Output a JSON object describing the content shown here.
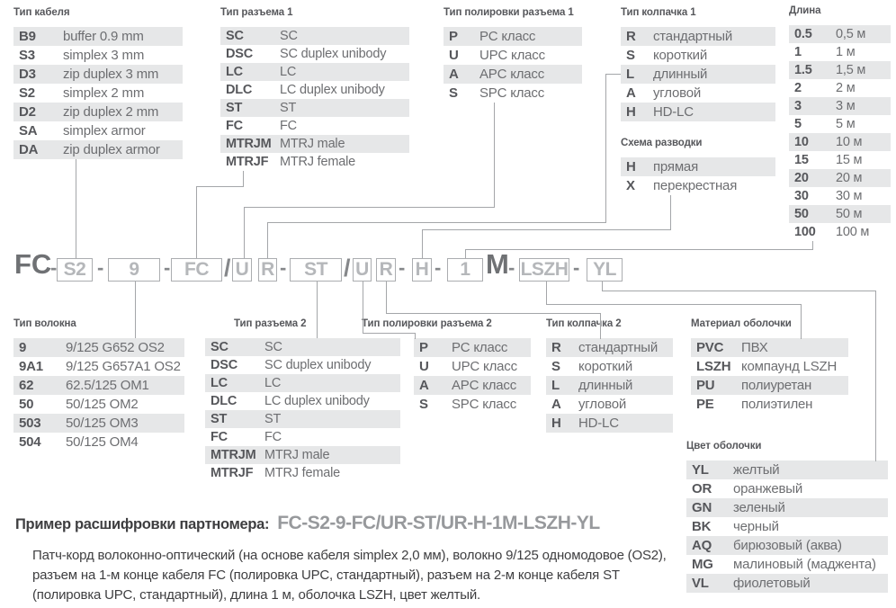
{
  "part_number": {
    "prefix": "FC",
    "meters_suffix": "M",
    "separator_dash": "-",
    "separator_slash": "/",
    "segments": {
      "cable_type": "S2",
      "fiber_type": "9",
      "connector1": "FC",
      "polish1": "U",
      "cap1": "R",
      "connector2": "ST",
      "polish2": "U",
      "cap2": "R",
      "wiring_scheme": "H",
      "length": "1",
      "jacket_material": "LSZH",
      "jacket_color": "YL"
    }
  },
  "tables": {
    "cable_type": {
      "label": "Тип кабеля",
      "rows": [
        [
          "B9",
          "buffer 0.9 mm"
        ],
        [
          "S3",
          "simplex 3 mm"
        ],
        [
          "D3",
          "zip duplex 3 mm"
        ],
        [
          "S2",
          "simplex 2 mm"
        ],
        [
          "D2",
          "zip duplex 2 mm"
        ],
        [
          "SA",
          "simplex armor"
        ],
        [
          "DA",
          "zip duplex armor"
        ]
      ]
    },
    "connector1": {
      "label": "Тип разъема 1",
      "rows": [
        [
          "SC",
          "SC"
        ],
        [
          "DSC",
          "SC duplex unibody"
        ],
        [
          "LC",
          "LC"
        ],
        [
          "DLC",
          "LC duplex unibody"
        ],
        [
          "ST",
          "ST"
        ],
        [
          "FC",
          "FC"
        ],
        [
          "MTRJM",
          "MTRJ male"
        ],
        [
          "MTRJF",
          "MTRJ female"
        ]
      ]
    },
    "polish1": {
      "label": "Тип полировки разъема 1",
      "rows": [
        [
          "P",
          "PC класс"
        ],
        [
          "U",
          "UPC класс"
        ],
        [
          "A",
          "APC класс"
        ],
        [
          "S",
          "SPC класс"
        ]
      ]
    },
    "cap1": {
      "label": "Тип колпачка 1",
      "rows": [
        [
          "R",
          "стандартный"
        ],
        [
          "S",
          "короткий"
        ],
        [
          "L",
          "длинный"
        ],
        [
          "A",
          "угловой"
        ],
        [
          "H",
          "HD-LC"
        ]
      ]
    },
    "wiring_scheme": {
      "label": "Схема разводки",
      "rows": [
        [
          "H",
          "прямая"
        ],
        [
          "X",
          "перекрестная"
        ]
      ]
    },
    "length": {
      "label": "Длина",
      "rows": [
        [
          "0.5",
          "0,5 м"
        ],
        [
          "1",
          "1 м"
        ],
        [
          "1.5",
          "1,5 м"
        ],
        [
          "2",
          "2 м"
        ],
        [
          "3",
          "3 м"
        ],
        [
          "5",
          "5 м"
        ],
        [
          "10",
          "10 м"
        ],
        [
          "15",
          "15 м"
        ],
        [
          "20",
          "20 м"
        ],
        [
          "30",
          "30 м"
        ],
        [
          "50",
          "50 м"
        ],
        [
          "100",
          "100 м"
        ]
      ]
    },
    "fiber_type": {
      "label": "Тип волокна",
      "rows": [
        [
          "9",
          "9/125 G652 OS2"
        ],
        [
          "9A1",
          "9/125 G657A1 OS2"
        ],
        [
          "62",
          "62.5/125 OM1"
        ],
        [
          "50",
          "50/125 OM2"
        ],
        [
          "503",
          "50/125 OM3"
        ],
        [
          "504",
          "50/125 OM4"
        ]
      ]
    },
    "connector2": {
      "label": "Тип разъема 2",
      "rows": [
        [
          "SC",
          "SC"
        ],
        [
          "DSC",
          "SC duplex unibody"
        ],
        [
          "LC",
          "LC"
        ],
        [
          "DLC",
          "LC duplex unibody"
        ],
        [
          "ST",
          "ST"
        ],
        [
          "FC",
          "FC"
        ],
        [
          "MTRJM",
          "MTRJ male"
        ],
        [
          "MTRJF",
          "MTRJ female"
        ]
      ]
    },
    "polish2": {
      "label": "Тип полировки разъема 2",
      "rows": [
        [
          "P",
          "PC класс"
        ],
        [
          "U",
          "UPC класс"
        ],
        [
          "A",
          "APC класс"
        ],
        [
          "S",
          "SPC класс"
        ]
      ]
    },
    "cap2": {
      "label": "Тип колпачка 2",
      "rows": [
        [
          "R",
          "стандартный"
        ],
        [
          "S",
          "короткий"
        ],
        [
          "L",
          "длинный"
        ],
        [
          "A",
          "угловой"
        ],
        [
          "H",
          "HD-LC"
        ]
      ]
    },
    "jacket_material": {
      "label": "Материал оболочки",
      "rows": [
        [
          "PVC",
          "ПВХ"
        ],
        [
          "LSZH",
          "компаунд LSZH"
        ],
        [
          "PU",
          "полиуретан"
        ],
        [
          "PE",
          "полиэтилен"
        ]
      ]
    },
    "jacket_color": {
      "label": "Цвет оболочки",
      "rows": [
        [
          "YL",
          "желтый"
        ],
        [
          "OR",
          "оранжевый"
        ],
        [
          "GN",
          "зеленый"
        ],
        [
          "BK",
          "черный"
        ],
        [
          "AQ",
          "бирюзовый (аква)"
        ],
        [
          "MG",
          "малиновый (маджента)"
        ],
        [
          "VL",
          "фиолетовый"
        ]
      ]
    }
  },
  "example": {
    "label": "Пример расшифровки партномера:",
    "value": "FC-S2-9-FC/UR-ST/UR-H-1M-LSZH-YL",
    "description": "Патч-корд волоконно-оптический (на основе кабеля simplex 2,0 мм), волокно 9/125 одномодовое (OS2), разъем на 1-м конце кабеля FC (полировка UPC, стандартный), разъем на 2-м конце кабеля ST (полировка UPC, стандартный), длина 1 м, оболочка LSZH, цвет желтый."
  },
  "colors": {
    "row_shade": "#e6e7e8",
    "code_text": "#56575b",
    "desc_text": "#6d6e71",
    "connector_line": "#a4a6a9",
    "box_border": "#abadb0",
    "box_text": "#b5b7ba",
    "example_value_text": "#97999c"
  }
}
